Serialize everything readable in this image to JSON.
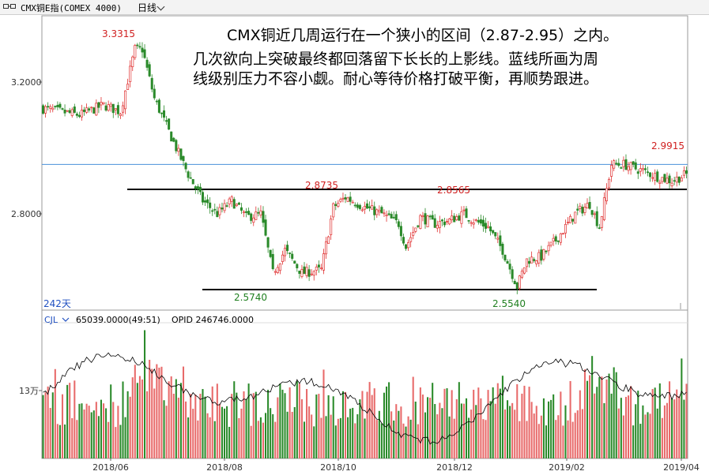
{
  "toolbar": {
    "icon": "chart-link-icon",
    "title": "CMX铜E指(COMEX 4000)",
    "period": "日线"
  },
  "annotation": {
    "line1": "CMX铜近几周运行在一个狭小的区间（2.87-2.95）之内。",
    "line2": "几次欲向上突破最终都回落留下长长的上影线。蓝线所画为周",
    "line3": "线级别压力不容小觑。耐心等待价格打破平衡，再顺势跟进。"
  },
  "colors": {
    "up": "#e03030",
    "down": "#2a8a2a",
    "resistance": "#4a90d9",
    "support": "#000000",
    "high_label": "#d02020",
    "low_label": "#208020"
  },
  "chart_data": [
    {
      "type": "candlestick",
      "ytick_labels": [
        "3.2000",
        "2.8000"
      ],
      "yticks": [
        3.2,
        2.8
      ],
      "ylim": [
        2.52,
        3.4
      ],
      "xtick_labels": [
        "2018/06",
        "2018/08",
        "2018/10",
        "2018/12",
        "2019/02",
        "2019/04"
      ],
      "range_label": "242天",
      "price_labels": [
        {
          "text": "3.3315",
          "value": 3.3315,
          "kind": "high"
        },
        {
          "text": "2.8735",
          "value": 2.8735,
          "kind": "high"
        },
        {
          "text": "2.8565",
          "value": 2.8565,
          "kind": "high"
        },
        {
          "text": "2.9915",
          "value": 2.9915,
          "kind": "high"
        },
        {
          "text": "2.5740",
          "value": 2.574,
          "kind": "low"
        },
        {
          "text": "2.5540",
          "value": 2.554,
          "kind": "low"
        }
      ],
      "horizontal_lines": [
        {
          "name": "weekly resistance",
          "value": 2.95,
          "color": "#4a90d9"
        },
        {
          "name": "range support",
          "value": 2.87,
          "color": "#000000"
        },
        {
          "name": "bottom line",
          "value": 2.565,
          "color": "#000000"
        }
      ],
      "trend_anchors": [
        [
          0,
          3.12
        ],
        [
          15,
          3.1
        ],
        [
          25,
          3.13
        ],
        [
          32,
          3.11
        ],
        [
          38,
          3.3
        ],
        [
          41,
          3.3
        ],
        [
          46,
          3.15
        ],
        [
          55,
          3.0
        ],
        [
          60,
          2.92
        ],
        [
          66,
          2.84
        ],
        [
          72,
          2.8
        ],
        [
          78,
          2.84
        ],
        [
          84,
          2.79
        ],
        [
          90,
          2.8
        ],
        [
          95,
          2.62
        ],
        [
          100,
          2.69
        ],
        [
          107,
          2.62
        ],
        [
          115,
          2.63
        ],
        [
          120,
          2.82
        ],
        [
          125,
          2.85
        ],
        [
          133,
          2.82
        ],
        [
          140,
          2.8
        ],
        [
          147,
          2.77
        ],
        [
          150,
          2.7
        ],
        [
          156,
          2.79
        ],
        [
          162,
          2.77
        ],
        [
          168,
          2.78
        ],
        [
          174,
          2.8
        ],
        [
          178,
          2.78
        ],
        [
          184,
          2.76
        ],
        [
          190,
          2.69
        ],
        [
          196,
          2.58
        ],
        [
          200,
          2.66
        ],
        [
          206,
          2.67
        ],
        [
          212,
          2.72
        ],
        [
          220,
          2.8
        ],
        [
          226,
          2.83
        ],
        [
          230,
          2.76
        ],
        [
          235,
          2.95
        ],
        [
          240,
          2.95
        ],
        [
          248,
          2.93
        ],
        [
          255,
          2.91
        ],
        [
          260,
          2.9
        ],
        [
          266,
          2.92
        ]
      ]
    },
    {
      "type": "bar",
      "indicator": "CJL",
      "volume_label": "65039.0000(49:51)",
      "opid_label": "OPID 246746.0000",
      "ytick_labels": [
        "13万"
      ],
      "yticks": [
        130000
      ],
      "ylim": [
        0,
        255000
      ]
    }
  ]
}
